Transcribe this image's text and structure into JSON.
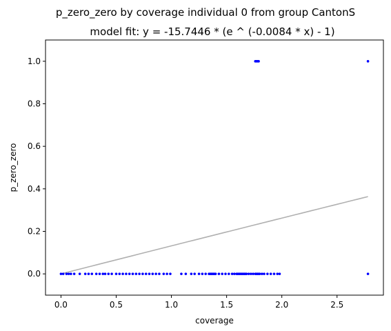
{
  "chart_data": {
    "type": "scatter",
    "title": "p_zero_zero by coverage individual 0 from group CantonS",
    "subtitle": "model fit: y = -15.7446 * (e ^ (-0.0084 * x) - 1)",
    "xlabel": "coverage",
    "ylabel": "p_zero_zero",
    "xlim": [
      -0.14,
      2.92
    ],
    "ylim": [
      -0.1,
      1.1
    ],
    "x_ticks": [
      0.0,
      0.5,
      1.0,
      1.5,
      2.0,
      2.5
    ],
    "x_tick_labels": [
      "0.0",
      "0.5",
      "1.0",
      "1.5",
      "2.0",
      "2.5"
    ],
    "y_ticks": [
      0.0,
      0.2,
      0.4,
      0.6,
      0.8,
      1.0
    ],
    "y_tick_labels": [
      "0.0",
      "0.2",
      "0.4",
      "0.6",
      "0.8",
      "1.0"
    ],
    "grid": false,
    "colors": {
      "points": "#0000ff",
      "fit": "#b0b0b0"
    },
    "series": [
      {
        "points": [
          [
            0.0,
            0
          ],
          [
            0.02,
            0
          ],
          [
            0.05,
            0
          ],
          [
            0.07,
            0
          ],
          [
            0.09,
            0
          ],
          [
            0.12,
            0
          ],
          [
            0.17,
            0
          ],
          [
            0.22,
            0
          ],
          [
            0.25,
            0
          ],
          [
            0.28,
            0
          ],
          [
            0.32,
            0
          ],
          [
            0.35,
            0
          ],
          [
            0.38,
            0
          ],
          [
            0.4,
            0
          ],
          [
            0.43,
            0
          ],
          [
            0.46,
            0
          ],
          [
            0.5,
            0
          ],
          [
            0.53,
            0
          ],
          [
            0.56,
            0
          ],
          [
            0.59,
            0
          ],
          [
            0.62,
            0
          ],
          [
            0.65,
            0
          ],
          [
            0.68,
            0
          ],
          [
            0.71,
            0
          ],
          [
            0.74,
            0
          ],
          [
            0.77,
            0
          ],
          [
            0.8,
            0
          ],
          [
            0.83,
            0
          ],
          [
            0.86,
            0
          ],
          [
            0.89,
            0
          ],
          [
            0.93,
            0
          ],
          [
            0.96,
            0
          ],
          [
            0.99,
            0
          ],
          [
            1.09,
            0
          ],
          [
            1.13,
            0
          ],
          [
            1.18,
            0
          ],
          [
            1.21,
            0
          ],
          [
            1.25,
            0
          ],
          [
            1.28,
            0
          ],
          [
            1.31,
            0
          ],
          [
            1.34,
            0
          ],
          [
            1.35,
            0
          ],
          [
            1.36,
            0
          ],
          [
            1.37,
            0
          ],
          [
            1.38,
            0
          ],
          [
            1.39,
            0
          ],
          [
            1.4,
            0
          ],
          [
            1.43,
            0
          ],
          [
            1.46,
            0
          ],
          [
            1.49,
            0
          ],
          [
            1.52,
            0
          ],
          [
            1.55,
            0
          ],
          [
            1.57,
            0
          ],
          [
            1.59,
            0
          ],
          [
            1.6,
            0
          ],
          [
            1.61,
            0
          ],
          [
            1.62,
            0
          ],
          [
            1.63,
            0
          ],
          [
            1.64,
            0
          ],
          [
            1.65,
            0
          ],
          [
            1.66,
            0
          ],
          [
            1.67,
            0
          ],
          [
            1.68,
            0
          ],
          [
            1.7,
            0
          ],
          [
            1.72,
            0
          ],
          [
            1.74,
            0
          ],
          [
            1.76,
            0
          ],
          [
            1.77,
            0
          ],
          [
            1.78,
            0
          ],
          [
            1.79,
            0
          ],
          [
            1.8,
            0
          ],
          [
            1.82,
            0
          ],
          [
            1.84,
            0
          ],
          [
            1.87,
            0
          ],
          [
            1.9,
            0
          ],
          [
            1.93,
            0
          ],
          [
            1.96,
            0
          ],
          [
            1.98,
            0
          ],
          [
            2.78,
            0
          ],
          [
            1.76,
            1
          ],
          [
            1.77,
            1
          ],
          [
            1.78,
            1
          ],
          [
            1.79,
            1
          ],
          [
            2.78,
            1
          ]
        ]
      }
    ],
    "fit": {
      "a": -15.7446,
      "b": -0.0084,
      "x_range": [
        0.0,
        2.78
      ]
    }
  }
}
